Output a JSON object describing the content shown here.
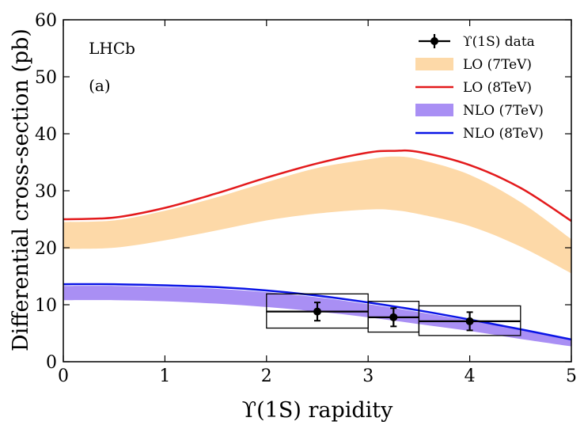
{
  "chart_data": {
    "type": "line",
    "xlabel": "ϒ(1S) rapidity",
    "ylabel": "Differential cross-section (pb)",
    "xlim": [
      0,
      5
    ],
    "ylim": [
      0,
      60
    ],
    "xticks": [
      0,
      1,
      2,
      3,
      4,
      5
    ],
    "yticks": [
      0,
      10,
      20,
      30,
      40,
      50,
      60
    ],
    "xtick_labels": [
      "0",
      "1",
      "2",
      "3",
      "4",
      "5"
    ],
    "ytick_labels": [
      "0",
      "10",
      "20",
      "30",
      "40",
      "50",
      "60"
    ],
    "grid": false,
    "legend_position": "top-right",
    "annotations": [
      {
        "text": "LHCb",
        "x": 0.25,
        "y": 54
      },
      {
        "text": "(a)",
        "x": 0.25,
        "y": 47.5
      }
    ],
    "series": [
      {
        "name": "ϒ(1S) data",
        "kind": "points",
        "color": "#000000",
        "points": [
          {
            "x": 2.5,
            "y": 8.8,
            "xerr": 0.5,
            "yerr": 1.6,
            "box_ylow": 5.9,
            "box_yhigh": 11.9
          },
          {
            "x": 3.25,
            "y": 7.8,
            "xerr": 0.25,
            "yerr": 1.6,
            "box_ylow": 5.2,
            "box_yhigh": 10.6
          },
          {
            "x": 4.0,
            "y": 7.1,
            "xerr": 0.5,
            "yerr": 1.6,
            "box_ylow": 4.6,
            "box_yhigh": 9.8
          }
        ]
      },
      {
        "name": "LO (7TeV)",
        "kind": "band",
        "color": "#fdd9a8",
        "x": [
          0,
          0.5,
          1.0,
          1.5,
          2.0,
          2.5,
          3.0,
          3.25,
          3.5,
          4.0,
          4.5,
          5.0
        ],
        "lower": [
          19.8,
          20.0,
          21.3,
          23.0,
          24.8,
          26.0,
          26.7,
          26.6,
          25.9,
          23.8,
          20.2,
          15.5
        ],
        "upper": [
          24.5,
          24.8,
          26.5,
          28.8,
          31.5,
          34.0,
          35.5,
          36.0,
          35.5,
          32.8,
          28.0,
          21.5
        ]
      },
      {
        "name": "LO (8TeV)",
        "kind": "line",
        "color": "#e31a1c",
        "x": [
          0,
          0.5,
          1.0,
          1.5,
          2.0,
          2.5,
          3.0,
          3.25,
          3.5,
          4.0,
          4.5,
          5.0
        ],
        "y": [
          25.0,
          25.3,
          27.0,
          29.5,
          32.3,
          34.8,
          36.7,
          37.0,
          36.8,
          34.5,
          30.5,
          24.7
        ]
      },
      {
        "name": "NLO (7TeV)",
        "kind": "band",
        "color": "#a98ff4",
        "x": [
          0,
          0.5,
          1.0,
          1.5,
          2.0,
          2.5,
          3.0,
          3.5,
          4.0,
          4.5,
          5.0
        ],
        "lower": [
          10.8,
          10.8,
          10.6,
          10.2,
          9.6,
          8.8,
          7.8,
          6.6,
          5.4,
          4.0,
          2.7
        ],
        "upper": [
          13.3,
          13.3,
          13.1,
          12.8,
          12.2,
          11.3,
          10.1,
          8.7,
          7.2,
          5.6,
          3.8
        ]
      },
      {
        "name": "NLO (8TeV)",
        "kind": "line",
        "color": "#0a14e6",
        "x": [
          0,
          0.5,
          1.0,
          1.5,
          2.0,
          2.5,
          3.0,
          3.5,
          4.0,
          4.5,
          5.0
        ],
        "y": [
          13.6,
          13.6,
          13.4,
          13.1,
          12.5,
          11.6,
          10.4,
          9.0,
          7.4,
          5.7,
          3.9
        ]
      }
    ]
  }
}
